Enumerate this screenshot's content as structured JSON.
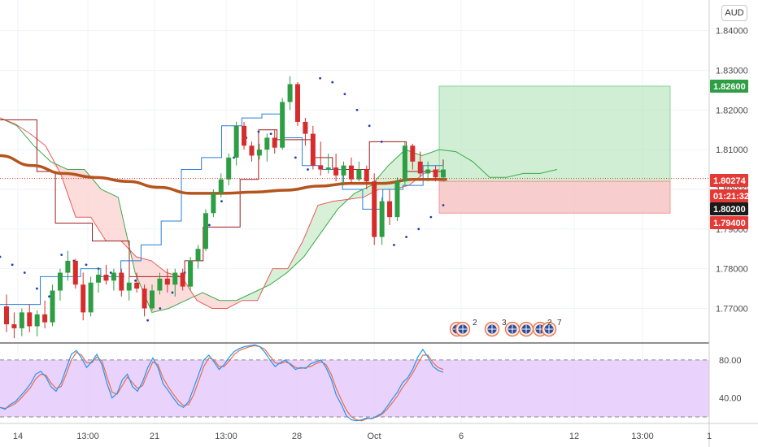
{
  "chart_data": [
    {
      "type": "candlestick",
      "symbol_currency": "AUD",
      "ylim": [
        1.7615,
        1.8477
      ],
      "y_ticks": [
        "1.84000",
        "1.83000",
        "1.82000",
        "1.81000",
        "1.80000",
        "1.79000",
        "1.78000",
        "1.77000"
      ],
      "x_ticks": [
        "14",
        "13:00",
        "21",
        "13:00",
        "28",
        "Oct",
        "6",
        "12",
        "13:00",
        "1"
      ],
      "price_tags": [
        {
          "label": "1.82600",
          "value": 1.826,
          "color": "#2e9e44"
        },
        {
          "label": "1.80274",
          "value": 1.80274,
          "color": "#e53935"
        },
        {
          "label": "01:21:32",
          "value": 1.80046,
          "color": "#e53935"
        },
        {
          "label": "1.80200",
          "value": 1.802,
          "color": "#1a1a1a"
        },
        {
          "label": "1.79400",
          "value": 1.794,
          "color": "#e53935"
        }
      ],
      "current_price": 1.80274,
      "position": {
        "entry": 1.802,
        "take_profit": 1.826,
        "stop_loss": 1.794,
        "profit_color": "#bfe8c4",
        "loss_color": "#f6c1c1"
      },
      "colors": {
        "up": "#2e9e44",
        "down": "#d62c2c",
        "ma": "#b5541d",
        "kijun": "#9e1f1f",
        "tenkan": "#2a7fd4",
        "span_a": "#3daa4a",
        "span_b": "#e85c5c",
        "cloud_bull": "#cdeccd",
        "cloud_bear": "#fbd5d2",
        "sar": "#1d3fb5"
      },
      "candles": [
        [
          1.7705,
          1.7735,
          1.764,
          1.766
        ],
        [
          1.766,
          1.769,
          1.7625,
          1.765
        ],
        [
          1.765,
          1.77,
          1.763,
          1.769
        ],
        [
          1.769,
          1.771,
          1.764,
          1.7655
        ],
        [
          1.7655,
          1.7695,
          1.763,
          1.7685
        ],
        [
          1.7685,
          1.772,
          1.765,
          1.7665
        ],
        [
          1.7665,
          1.776,
          1.7655,
          1.7745
        ],
        [
          1.7745,
          1.78,
          1.772,
          1.779
        ],
        [
          1.779,
          1.7845,
          1.777,
          1.782
        ],
        [
          1.782,
          1.7825,
          1.775,
          1.776
        ],
        [
          1.776,
          1.779,
          1.767,
          1.769
        ],
        [
          1.769,
          1.778,
          1.768,
          1.7765
        ],
        [
          1.7765,
          1.78,
          1.774,
          1.7785
        ],
        [
          1.7785,
          1.781,
          1.776,
          1.777
        ],
        [
          1.777,
          1.78,
          1.7745,
          1.779
        ],
        [
          1.779,
          1.78,
          1.773,
          1.7745
        ],
        [
          1.7745,
          1.778,
          1.772,
          1.7765
        ],
        [
          1.7765,
          1.779,
          1.774,
          1.775
        ],
        [
          1.775,
          1.776,
          1.768,
          1.77
        ],
        [
          1.77,
          1.776,
          1.7695,
          1.7745
        ],
        [
          1.7745,
          1.779,
          1.7735,
          1.7775
        ],
        [
          1.7775,
          1.78,
          1.774,
          1.776
        ],
        [
          1.776,
          1.78,
          1.773,
          1.779
        ],
        [
          1.779,
          1.78,
          1.7745,
          1.7755
        ],
        [
          1.7755,
          1.783,
          1.7745,
          1.782
        ],
        [
          1.782,
          1.786,
          1.78,
          1.785
        ],
        [
          1.785,
          1.795,
          1.7845,
          1.794
        ],
        [
          1.794,
          1.8,
          1.793,
          1.799
        ],
        [
          1.799,
          1.804,
          1.798,
          1.8025
        ],
        [
          1.8025,
          1.809,
          1.801,
          1.808
        ],
        [
          1.808,
          1.817,
          1.806,
          1.816
        ],
        [
          1.816,
          1.817,
          1.81,
          1.811
        ],
        [
          1.811,
          1.812,
          1.807,
          1.8085
        ],
        [
          1.8085,
          1.8115,
          1.8075,
          1.81
        ],
        [
          1.81,
          1.814,
          1.807,
          1.813
        ],
        [
          1.813,
          1.815,
          1.809,
          1.8105
        ],
        [
          1.8105,
          1.823,
          1.81,
          1.822
        ],
        [
          1.822,
          1.8285,
          1.82,
          1.8265
        ],
        [
          1.8265,
          1.827,
          1.816,
          1.817
        ],
        [
          1.817,
          1.818,
          1.811,
          1.814
        ],
        [
          1.814,
          1.816,
          1.805,
          1.806
        ],
        [
          1.806,
          1.812,
          1.8035,
          1.805
        ],
        [
          1.805,
          1.809,
          1.804,
          1.8055
        ],
        [
          1.8055,
          1.809,
          1.802,
          1.8035
        ],
        [
          1.8035,
          1.807,
          1.801,
          1.806
        ],
        [
          1.806,
          1.808,
          1.8015,
          1.8025
        ],
        [
          1.8025,
          1.807,
          1.802,
          1.805
        ],
        [
          1.805,
          1.806,
          1.8,
          1.802
        ],
        [
          1.802,
          1.804,
          1.786,
          1.788
        ],
        [
          1.788,
          1.798,
          1.786,
          1.797
        ],
        [
          1.797,
          1.8,
          1.791,
          1.793
        ],
        [
          1.793,
          1.803,
          1.792,
          1.802
        ],
        [
          1.802,
          1.812,
          1.801,
          1.811
        ],
        [
          1.811,
          1.8115,
          1.805,
          1.807
        ],
        [
          1.807,
          1.8095,
          1.803,
          1.804
        ],
        [
          1.804,
          1.807,
          1.802,
          1.805
        ],
        [
          1.805,
          1.806,
          1.802,
          1.803
        ],
        [
          1.803,
          1.806,
          1.802,
          1.805
        ]
      ],
      "ma_y": [
        1.8085,
        1.806,
        1.804,
        1.803,
        1.802,
        1.8005,
        1.799,
        1.799,
        1.7993,
        1.7998,
        1.8008,
        1.8015,
        1.8015,
        1.8025,
        1.8025
      ],
      "kijun_y": [
        1.8175,
        1.8175,
        1.8045,
        1.7915,
        1.7915,
        1.787,
        1.787,
        1.778,
        1.778,
        1.778,
        1.782,
        1.7905,
        1.7905,
        1.8025,
        1.815,
        1.8125,
        1.8125,
        1.808,
        1.805,
        1.805,
        1.812,
        1.812,
        1.8045,
        1.8045,
        1.8075
      ],
      "tenkan_y": [
        1.771,
        1.771,
        1.778,
        1.778,
        1.78,
        1.778,
        1.782,
        1.786,
        1.792,
        1.805,
        1.808,
        1.816,
        1.818,
        1.819,
        1.813,
        1.806,
        1.805,
        1.8,
        1.795,
        1.8,
        1.801,
        1.806,
        1.8055
      ],
      "span_a_y": [
        1.818,
        1.816,
        1.811,
        1.807,
        1.805,
        1.805,
        1.8,
        1.798,
        1.779,
        1.769,
        1.77,
        1.772,
        1.774,
        1.772,
        1.772,
        1.774,
        1.776,
        1.779,
        1.783,
        1.789,
        1.795,
        1.799,
        1.801,
        1.806,
        1.81,
        1.8085,
        1.81,
        1.8095,
        1.807,
        1.803,
        1.803,
        1.804,
        1.804,
        1.805
      ],
      "span_b_y": [
        1.818,
        1.8165,
        1.814,
        1.811,
        1.804,
        1.793,
        1.793,
        1.787,
        1.787,
        1.783,
        1.782,
        1.779,
        1.778,
        1.772,
        1.77,
        1.77,
        1.772,
        1.772,
        1.78,
        1.78,
        1.787,
        1.796,
        1.797,
        1.7975,
        1.798,
        1.8,
        1.8,
        1.801,
        1.804,
        1.805
      ],
      "sar_y": [
        1.783,
        1.781,
        1.779,
        1.775,
        1.773,
        1.7835,
        1.782,
        1.781,
        1.78,
        1.779,
        1.778,
        1.777,
        1.767,
        1.77,
        1.774,
        1.779,
        1.784,
        1.791,
        1.797,
        1.808,
        1.813,
        1.8145,
        1.814,
        1.811,
        1.808,
        1.805,
        1.828,
        1.827,
        1.824,
        1.82,
        1.816,
        1.812,
        1.786,
        1.788,
        1.79,
        1.793,
        1.796
      ],
      "event_badges": [
        "2",
        "3",
        "2",
        "7"
      ]
    },
    {
      "type": "line",
      "ylim": [
        14,
        97
      ],
      "y_ticks": [
        "80.00",
        "40.00"
      ],
      "band": [
        20,
        80
      ],
      "series_k": [
        30,
        28,
        33,
        36,
        42,
        48,
        55,
        65,
        68,
        62,
        52,
        47,
        56,
        71,
        86,
        90,
        82,
        72,
        78,
        86,
        75,
        55,
        40,
        45,
        59,
        65,
        52,
        47,
        57,
        72,
        82,
        72,
        55,
        48,
        40,
        33,
        30,
        36,
        50,
        65,
        80,
        85,
        78,
        70,
        75,
        83,
        89,
        92,
        94,
        95,
        96,
        94,
        88,
        80,
        73,
        77,
        80,
        75,
        70,
        72,
        71,
        76,
        78,
        80,
        72,
        60,
        43,
        33,
        21,
        17,
        16,
        17,
        19,
        18,
        21,
        24,
        31,
        39,
        46,
        56,
        61,
        70,
        83,
        91,
        83,
        73,
        69,
        67
      ],
      "series_d": [
        30,
        29,
        31,
        34,
        39,
        45,
        51,
        60,
        65,
        64,
        56,
        50,
        52,
        65,
        80,
        88,
        85,
        77,
        77,
        83,
        79,
        62,
        46,
        44,
        53,
        62,
        56,
        50,
        53,
        66,
        78,
        75,
        61,
        52,
        44,
        37,
        32,
        33,
        43,
        58,
        73,
        82,
        80,
        73,
        73,
        79,
        86,
        90,
        92,
        94,
        95,
        94,
        91,
        84,
        77,
        76,
        78,
        76,
        72,
        71,
        72,
        73,
        76,
        78,
        75,
        65,
        50,
        38,
        27,
        20,
        17,
        16,
        18,
        19,
        20,
        23,
        28,
        35,
        42,
        51,
        58,
        66,
        76,
        85,
        85,
        77,
        72,
        70
      ]
    }
  ]
}
